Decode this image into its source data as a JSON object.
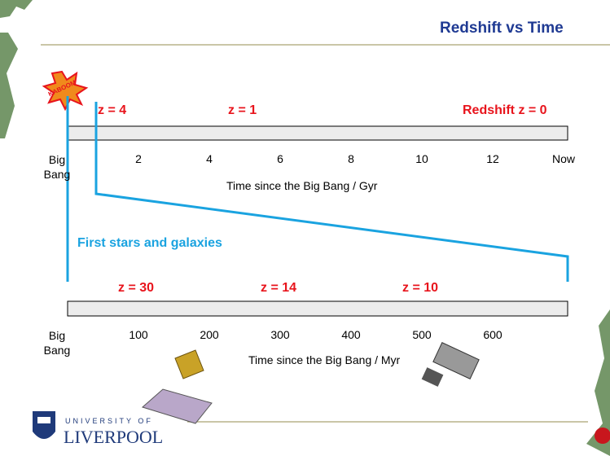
{
  "title": "Redshift vs Time",
  "timelines": [
    {
      "redshift_labels": [
        "z = 4",
        "z = 1",
        "Redshift z = 0"
      ],
      "tick_labels": [
        "Big Bang",
        "2",
        "4",
        "6",
        "8",
        "10",
        "12",
        "Now"
      ],
      "axis_label": "Time since the Big Bang / Gyr"
    },
    {
      "redshift_labels": [
        "z = 30",
        "z = 14",
        "z = 10"
      ],
      "tick_labels": [
        "Big Bang",
        "100",
        "200",
        "300",
        "400",
        "500",
        "600"
      ],
      "axis_label": "Time since the Big Bang / Myr"
    }
  ],
  "annotation": "First stars and galaxies",
  "explosion_label": "KABOOM",
  "logo": {
    "top": "UNIVERSITY OF",
    "name": "LIVERPOOL"
  }
}
